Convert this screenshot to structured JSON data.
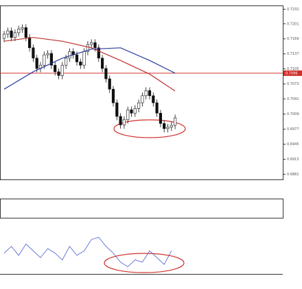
{
  "chart_data": {
    "type": "candlestick",
    "open": [
      0.717,
      0.7179,
      0.7186,
      0.7172,
      0.7182,
      0.719,
      0.7193,
      0.7172,
      0.715,
      0.7128,
      0.7106,
      0.7113,
      0.7135,
      0.7138,
      0.7113,
      0.7099,
      0.7091,
      0.7113,
      0.7128,
      0.7142,
      0.7135,
      0.712,
      0.7113,
      0.7142,
      0.7157,
      0.7161,
      0.715,
      0.7128,
      0.7106,
      0.7084,
      0.7062,
      0.7033,
      0.7004,
      0.6986,
      0.6997,
      0.7018,
      0.7011,
      0.7021,
      0.7033,
      0.7048,
      0.7059,
      0.7048,
      0.7033,
      0.7011,
      0.6989,
      0.6978,
      0.6981,
      0.6985
    ],
    "high": [
      0.7186,
      0.7193,
      0.7193,
      0.7189,
      0.7197,
      0.72,
      0.72,
      0.7179,
      0.7157,
      0.7135,
      0.712,
      0.7142,
      0.7145,
      0.7145,
      0.712,
      0.7106,
      0.712,
      0.7135,
      0.7149,
      0.7149,
      0.7142,
      0.7127,
      0.7149,
      0.7164,
      0.7168,
      0.7168,
      0.7157,
      0.7135,
      0.7113,
      0.7091,
      0.7069,
      0.704,
      0.7011,
      0.7004,
      0.7025,
      0.7025,
      0.7028,
      0.704,
      0.7055,
      0.7066,
      0.7066,
      0.7055,
      0.704,
      0.7018,
      0.6996,
      0.6988,
      0.6992,
      0.7008
    ],
    "low": [
      0.7162,
      0.7171,
      0.7164,
      0.7164,
      0.7174,
      0.7182,
      0.7164,
      0.7142,
      0.712,
      0.7098,
      0.7098,
      0.7105,
      0.7127,
      0.7105,
      0.7091,
      0.7083,
      0.7083,
      0.7105,
      0.712,
      0.7127,
      0.7112,
      0.7105,
      0.7105,
      0.7134,
      0.7149,
      0.7142,
      0.712,
      0.7098,
      0.7076,
      0.7054,
      0.7025,
      0.6996,
      0.6978,
      0.6978,
      0.6989,
      0.7003,
      0.7003,
      0.7013,
      0.7025,
      0.704,
      0.704,
      0.7025,
      0.7003,
      0.6981,
      0.697,
      0.697,
      0.6973,
      0.6977
    ],
    "close": [
      0.7179,
      0.7186,
      0.7172,
      0.7182,
      0.719,
      0.7193,
      0.7172,
      0.715,
      0.7128,
      0.7106,
      0.7113,
      0.7135,
      0.7138,
      0.7113,
      0.7099,
      0.7091,
      0.7113,
      0.7128,
      0.7142,
      0.7135,
      0.712,
      0.7113,
      0.7142,
      0.7157,
      0.7161,
      0.715,
      0.7128,
      0.7106,
      0.7084,
      0.7062,
      0.7033,
      0.7004,
      0.6986,
      0.6997,
      0.7018,
      0.7011,
      0.7021,
      0.7033,
      0.7048,
      0.7059,
      0.7048,
      0.7033,
      0.7011,
      0.6989,
      0.6978,
      0.6981,
      0.6985,
      0.7001
    ],
    "ma_series": [
      {
        "color": "#c0302a",
        "x": [
          0,
          8,
          16,
          24,
          32,
          40,
          47
        ],
        "values": [
          0.7164,
          0.7172,
          0.7164,
          0.715,
          0.7123,
          0.7094,
          0.7058
        ]
      },
      {
        "color": "#2a3a9c",
        "x": [
          0,
          8,
          16,
          24,
          32,
          40,
          47
        ],
        "values": [
          0.7062,
          0.7099,
          0.7128,
          0.7147,
          0.715,
          0.7123,
          0.7096
        ]
      }
    ],
    "hline": {
      "value": 0.7096,
      "color": "#d0302a"
    },
    "ylim": [
      0.687,
      0.724
    ],
    "yticks": [
      0.7232,
      0.7201,
      0.7169,
      0.7137,
      0.7105,
      0.7073,
      0.7041,
      0.7009,
      0.6977,
      0.6945,
      0.6913,
      0.6881
    ],
    "oscillator": {
      "color": "#4b5bd0",
      "x": [
        0,
        2,
        4,
        6,
        8,
        10,
        12,
        14,
        16,
        18,
        20,
        22,
        24,
        26,
        28,
        30,
        32,
        34,
        36,
        38,
        40,
        42,
        44,
        46
      ],
      "values": [
        40,
        55,
        35,
        60,
        45,
        30,
        50,
        40,
        25,
        55,
        35,
        45,
        70,
        75,
        55,
        40,
        20,
        10,
        25,
        20,
        45,
        30,
        15,
        45
      ],
      "ylim": [
        0,
        100
      ]
    }
  }
}
